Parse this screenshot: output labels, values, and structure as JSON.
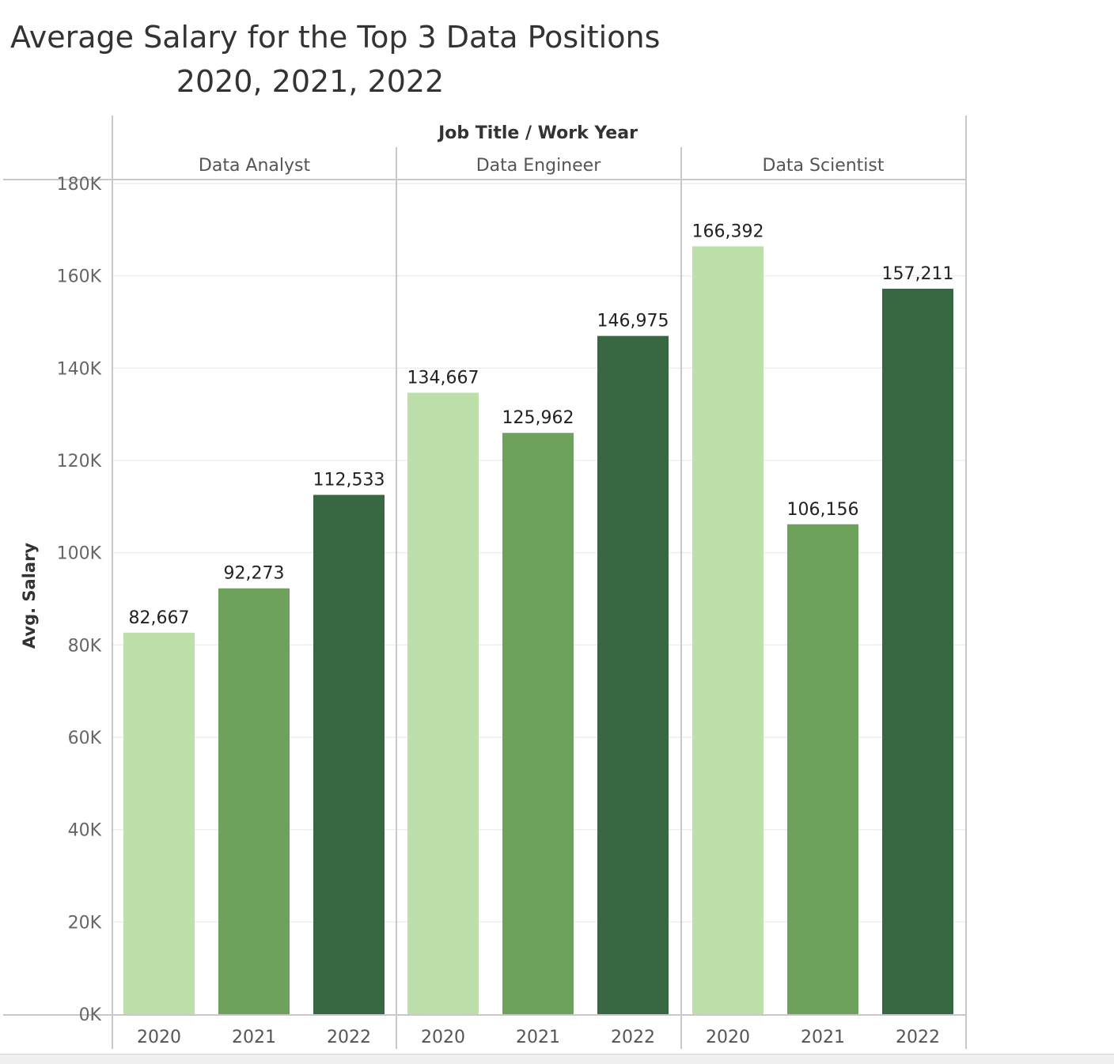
{
  "chart_data": {
    "type": "bar",
    "title_line1": "Average Salary for the Top 3 Data Positions",
    "title_line2": "2020, 2021, 2022",
    "header": "Job Title / Work Year",
    "ylabel": "Avg. Salary",
    "ylim": [
      0,
      180000
    ],
    "yticks": [
      {
        "value": 0,
        "label": "0K"
      },
      {
        "value": 20000,
        "label": "20K"
      },
      {
        "value": 40000,
        "label": "40K"
      },
      {
        "value": 60000,
        "label": "60K"
      },
      {
        "value": 80000,
        "label": "80K"
      },
      {
        "value": 100000,
        "label": "100K"
      },
      {
        "value": 120000,
        "label": "120K"
      },
      {
        "value": 140000,
        "label": "140K"
      },
      {
        "value": 160000,
        "label": "160K"
      },
      {
        "value": 180000,
        "label": "180K"
      }
    ],
    "grid": true,
    "groups": [
      {
        "name": "Data Analyst",
        "bars": [
          {
            "year": "2020",
            "value": 82667,
            "label": "82,667"
          },
          {
            "year": "2021",
            "value": 92273,
            "label": "92,273"
          },
          {
            "year": "2022",
            "value": 112533,
            "label": "112,533"
          }
        ]
      },
      {
        "name": "Data Engineer",
        "bars": [
          {
            "year": "2020",
            "value": 134667,
            "label": "134,667"
          },
          {
            "year": "2021",
            "value": 125962,
            "label": "125,962"
          },
          {
            "year": "2022",
            "value": 146975,
            "label": "146,975"
          }
        ]
      },
      {
        "name": "Data Scientist",
        "bars": [
          {
            "year": "2020",
            "value": 166392,
            "label": "166,392"
          },
          {
            "year": "2021",
            "value": 106156,
            "label": "106,156"
          },
          {
            "year": "2022",
            "value": 157211,
            "label": "157,211"
          }
        ]
      }
    ],
    "colors": {
      "2020": "#bddfaa",
      "2021": "#6ea25c",
      "2022": "#386842"
    }
  }
}
